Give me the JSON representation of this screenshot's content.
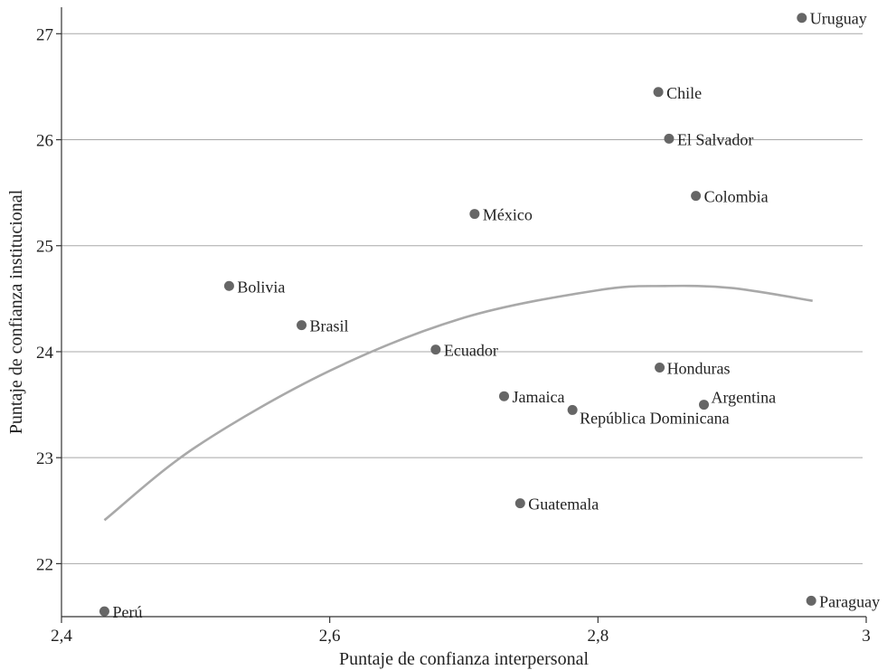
{
  "chart_data": {
    "type": "scatter",
    "xlabel": "Puntaje de confianza interpersonal",
    "ylabel": "Puntaje de confianza institucional",
    "xlim": [
      2.4,
      3.0
    ],
    "ylim": [
      21.5,
      27.25
    ],
    "xticks": [
      2.4,
      2.6,
      2.8,
      3.0
    ],
    "xtick_labels": [
      "2,4",
      "2,6",
      "2,8",
      "3"
    ],
    "yticks": [
      22,
      23,
      24,
      25,
      26,
      27
    ],
    "ytick_labels": [
      "22",
      "23",
      "24",
      "25",
      "26",
      "27"
    ],
    "grid": "horizontal",
    "point_color": "#666666",
    "fit_color": "#a9a9a9",
    "points": [
      {
        "label": "Uruguay",
        "x": 2.952,
        "y": 27.15
      },
      {
        "label": "Chile",
        "x": 2.845,
        "y": 26.45
      },
      {
        "label": "El Salvador",
        "x": 2.853,
        "y": 26.01
      },
      {
        "label": "Colombia",
        "x": 2.873,
        "y": 25.47
      },
      {
        "label": "México",
        "x": 2.708,
        "y": 25.3
      },
      {
        "label": "Bolivia",
        "x": 2.525,
        "y": 24.62
      },
      {
        "label": "Brasil",
        "x": 2.579,
        "y": 24.25
      },
      {
        "label": "Ecuador",
        "x": 2.679,
        "y": 24.02
      },
      {
        "label": "Honduras",
        "x": 2.846,
        "y": 23.85
      },
      {
        "label": "Argentina",
        "x": 2.879,
        "y": 23.5
      },
      {
        "label": "Jamaica",
        "x": 2.73,
        "y": 23.58
      },
      {
        "label": "República Dominicana",
        "x": 2.781,
        "y": 23.45
      },
      {
        "label": "Guatemala",
        "x": 2.742,
        "y": 22.57
      },
      {
        "label": "Perú",
        "x": 2.432,
        "y": 21.55
      },
      {
        "label": "Paraguay",
        "x": 2.959,
        "y": 21.65
      }
    ],
    "fit_curve": {
      "type": "quadratic",
      "points": [
        {
          "x": 2.432,
          "y": 22.41
        },
        {
          "x": 2.5,
          "y": 23.1
        },
        {
          "x": 2.6,
          "y": 23.82
        },
        {
          "x": 2.7,
          "y": 24.32
        },
        {
          "x": 2.8,
          "y": 24.58
        },
        {
          "x": 2.85,
          "y": 24.62
        },
        {
          "x": 2.9,
          "y": 24.6
        },
        {
          "x": 2.96,
          "y": 24.48
        }
      ]
    }
  }
}
